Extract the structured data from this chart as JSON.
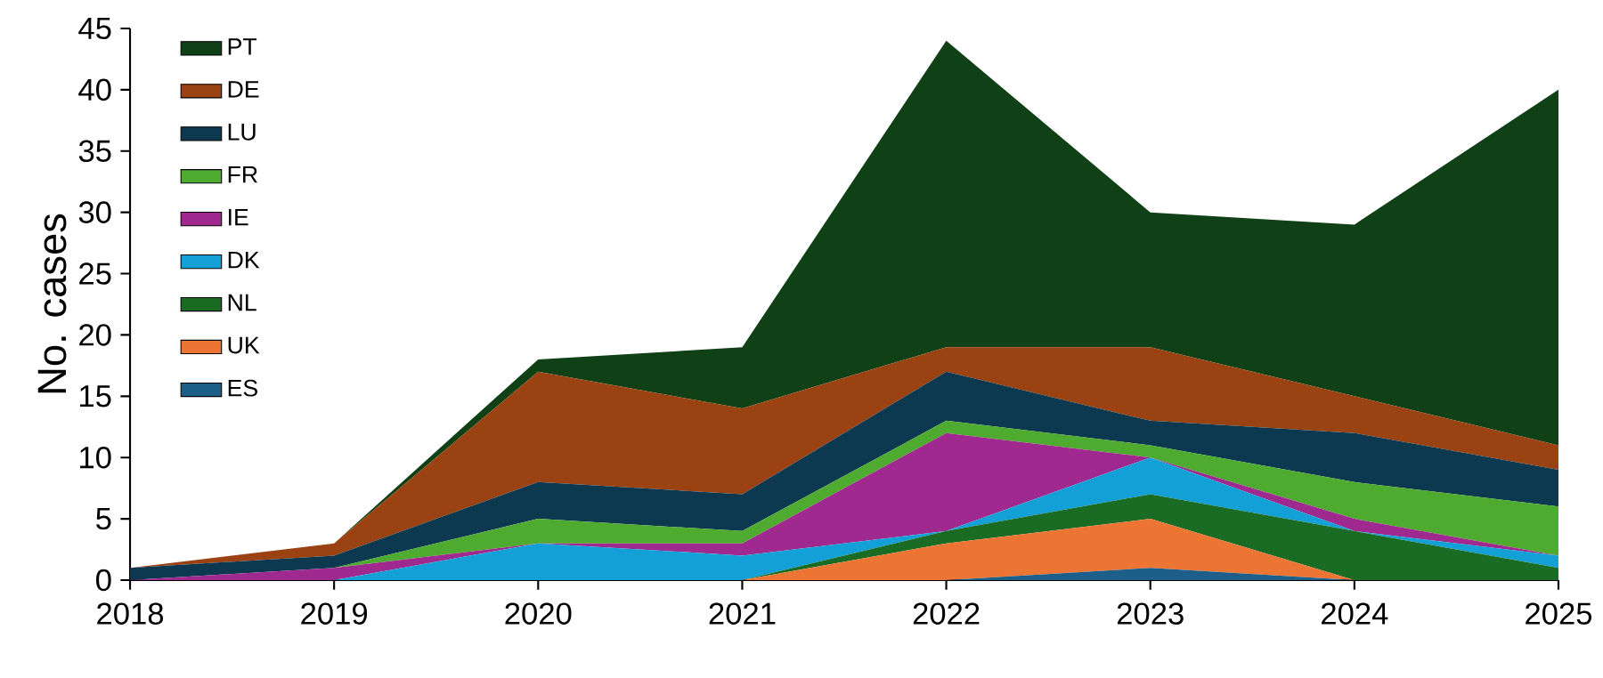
{
  "chart_data": {
    "type": "area",
    "stacked": true,
    "ylabel": "No. cases",
    "x": [
      2018,
      2019,
      2020,
      2021,
      2022,
      2023,
      2024,
      2025
    ],
    "xlim": [
      2018,
      2025
    ],
    "xticks": [
      2018,
      2019,
      2020,
      2021,
      2022,
      2023,
      2024,
      2025
    ],
    "ylim": [
      0,
      45
    ],
    "yticks": [
      0,
      5,
      10,
      15,
      20,
      25,
      30,
      35,
      40,
      45
    ],
    "legend": "top left",
    "grid": false,
    "series": [
      {
        "name": "ES",
        "color": "#1d5f88",
        "values": [
          0,
          0,
          0,
          0,
          0,
          1,
          0,
          0
        ]
      },
      {
        "name": "UK",
        "color": "#ec7533",
        "values": [
          0,
          0,
          0,
          0,
          3,
          4,
          0,
          0
        ]
      },
      {
        "name": "NL",
        "color": "#1a6b24",
        "values": [
          0,
          0,
          0,
          0,
          1,
          2,
          4,
          1
        ]
      },
      {
        "name": "DK",
        "color": "#12a0d7",
        "values": [
          0,
          0,
          3,
          2,
          0,
          3,
          0,
          1
        ]
      },
      {
        "name": "IE",
        "color": "#a0298f",
        "values": [
          0,
          1,
          0,
          1,
          8,
          0,
          1,
          0
        ]
      },
      {
        "name": "FR",
        "color": "#4faa30",
        "values": [
          0,
          0,
          2,
          1,
          1,
          1,
          3,
          4
        ]
      },
      {
        "name": "LU",
        "color": "#0c3850",
        "values": [
          1,
          1,
          3,
          3,
          4,
          2,
          4,
          3
        ]
      },
      {
        "name": "DE",
        "color": "#9a4211",
        "values": [
          0,
          1,
          9,
          7,
          2,
          6,
          3,
          2
        ]
      },
      {
        "name": "PT",
        "color": "#0f4016",
        "values": [
          0,
          0,
          1,
          5,
          25,
          11,
          14,
          29
        ]
      }
    ]
  }
}
